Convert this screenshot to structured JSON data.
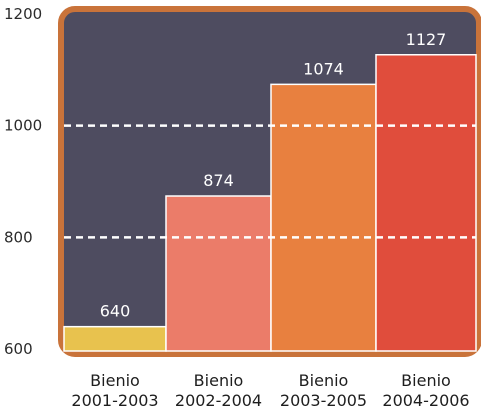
{
  "chart_data": {
    "type": "bar",
    "categories": [
      [
        "Bienio",
        "2001-2003"
      ],
      [
        "Bienio",
        "2002-2004"
      ],
      [
        "Bienio",
        "2003-2005"
      ],
      [
        "Bienio",
        "2004-2006"
      ]
    ],
    "values": [
      640,
      874,
      1074,
      1127
    ],
    "value_labels": [
      "640",
      "874",
      "1074",
      "1127"
    ],
    "yticks": [
      600,
      800,
      1000,
      1200
    ],
    "ytick_labels": [
      "600",
      "800",
      "1000",
      "1200"
    ],
    "ylim": [
      600,
      1200
    ],
    "gridlines_at": [
      800,
      1000
    ],
    "grid": "dashed white at 800 and 1000",
    "title": "",
    "xlabel": "",
    "ylabel": "",
    "colors": {
      "frame_border": "#c9733a",
      "plot_background": "#4e4c60",
      "bars": [
        "#e8c24e",
        "#eb7c69",
        "#e8803f",
        "#e04d3c"
      ],
      "gridline": "#ffffff"
    }
  }
}
